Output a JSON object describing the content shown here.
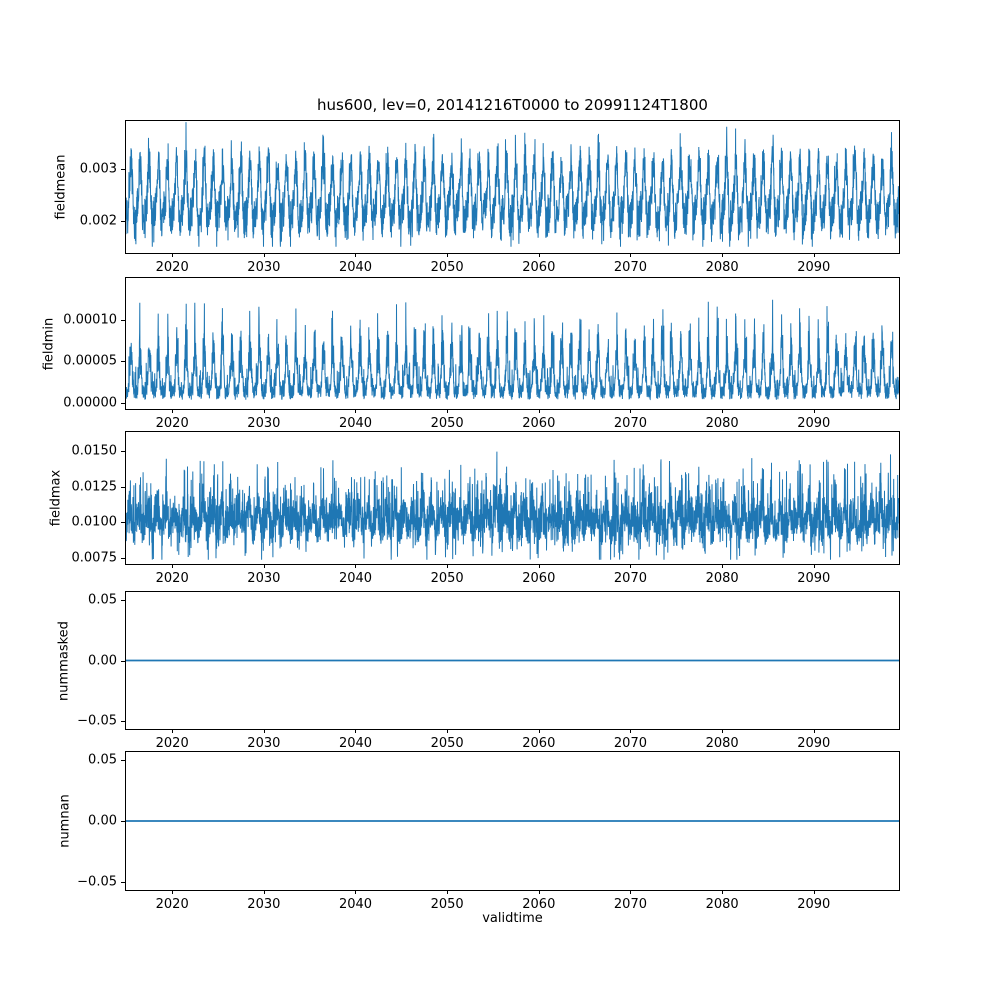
{
  "figure": {
    "title": "hus600, lev=0, 20141216T0000 to 20991124T1800",
    "xlabel": "validtime",
    "line_color": "#1f77b4",
    "background": "#ffffff"
  },
  "chart_data": [
    {
      "type": "line",
      "ylabel": "fieldmean",
      "x_range": [
        2014.96,
        2099.3
      ],
      "xticks": [
        2020,
        2030,
        2040,
        2050,
        2060,
        2070,
        2080,
        2090
      ],
      "xtick_labels": [
        "2020",
        "2030",
        "2040",
        "2050",
        "2060",
        "2070",
        "2080",
        "2090"
      ],
      "ylim": [
        0.0014,
        0.0039
      ],
      "yticks": [
        0.002,
        0.003
      ],
      "ytick_labels": [
        "0.002",
        "0.003"
      ],
      "value_range": [
        0.0015,
        0.0038
      ],
      "series": {
        "kind": "fieldmean",
        "base": 0.00245,
        "amp": 0.00048,
        "noise": 0.00035,
        "n": 4200,
        "seed": 7
      }
    },
    {
      "type": "line",
      "ylabel": "fieldmin",
      "x_range": [
        2014.96,
        2099.3
      ],
      "xticks": [
        2020,
        2030,
        2040,
        2050,
        2060,
        2070,
        2080,
        2090
      ],
      "xtick_labels": [
        "2020",
        "2030",
        "2040",
        "2050",
        "2060",
        "2070",
        "2080",
        "2090"
      ],
      "ylim": [
        -7e-06,
        0.00015
      ],
      "yticks": [
        0,
        5e-05,
        0.0001
      ],
      "ytick_labels": [
        "0.00000",
        "0.00005",
        "0.00010"
      ],
      "value_range": [
        0.0,
        0.000135
      ],
      "series": {
        "kind": "fieldmin",
        "base": 4e-06,
        "amp": 8e-05,
        "noise": 1.8e-05,
        "n": 4200,
        "seed": 11
      }
    },
    {
      "type": "line",
      "ylabel": "fieldmax",
      "x_range": [
        2014.96,
        2099.3
      ],
      "xticks": [
        2020,
        2030,
        2040,
        2050,
        2060,
        2070,
        2080,
        2090
      ],
      "xtick_labels": [
        "2020",
        "2030",
        "2040",
        "2050",
        "2060",
        "2070",
        "2080",
        "2090"
      ],
      "ylim": [
        0.0071,
        0.0163
      ],
      "yticks": [
        0.0075,
        0.01,
        0.0125,
        0.015
      ],
      "ytick_labels": [
        "0.0075",
        "0.0100",
        "0.0125",
        "0.0150"
      ],
      "value_range": [
        0.0075,
        0.0158
      ],
      "series": {
        "kind": "fieldmax",
        "base": 0.0101,
        "amp": 0.0006,
        "noise": 0.0011,
        "n": 4200,
        "seed": 13
      }
    },
    {
      "type": "line",
      "ylabel": "nummasked",
      "x_range": [
        2014.96,
        2099.3
      ],
      "xticks": [
        2020,
        2030,
        2040,
        2050,
        2060,
        2070,
        2080,
        2090
      ],
      "xtick_labels": [
        "2020",
        "2030",
        "2040",
        "2050",
        "2060",
        "2070",
        "2080",
        "2090"
      ],
      "ylim": [
        -0.057,
        0.057
      ],
      "yticks": [
        -0.05,
        0,
        0.05
      ],
      "ytick_labels": [
        "−0.05",
        "0.00",
        "0.05"
      ],
      "value_range": [
        0,
        0
      ],
      "series": {
        "kind": "constant",
        "value": 0,
        "n": 2,
        "seed": 1
      }
    },
    {
      "type": "line",
      "ylabel": "numnan",
      "x_range": [
        2014.96,
        2099.3
      ],
      "xticks": [
        2020,
        2030,
        2040,
        2050,
        2060,
        2070,
        2080,
        2090
      ],
      "xtick_labels": [
        "2020",
        "2030",
        "2040",
        "2050",
        "2060",
        "2070",
        "2080",
        "2090"
      ],
      "ylim": [
        -0.057,
        0.057
      ],
      "yticks": [
        -0.05,
        0,
        0.05
      ],
      "ytick_labels": [
        "−0.05",
        "0.00",
        "0.05"
      ],
      "value_range": [
        0,
        0
      ],
      "series": {
        "kind": "constant",
        "value": 0,
        "n": 2,
        "seed": 1
      }
    }
  ]
}
